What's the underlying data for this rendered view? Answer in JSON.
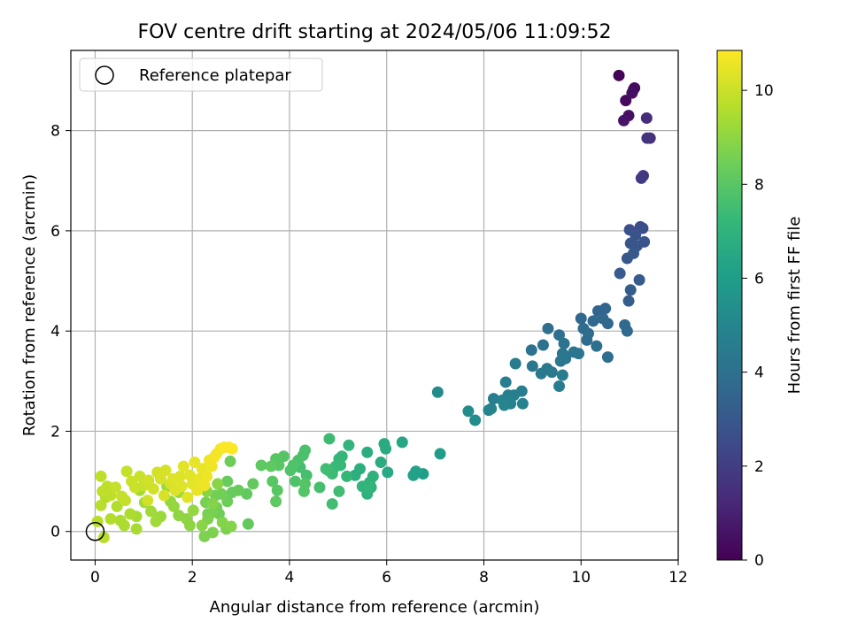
{
  "chart_data": {
    "type": "scatter",
    "title": "FOV centre drift starting at 2024/05/06 11:09:52",
    "xlabel": "Angular distance from reference (arcmin)",
    "ylabel": "Rotation from reference (arcmin)",
    "xlim": [
      -0.5,
      12
    ],
    "ylim": [
      -0.57,
      9.6
    ],
    "xticks": [
      0,
      2,
      4,
      6,
      8,
      10,
      12
    ],
    "yticks": [
      0,
      2,
      4,
      6,
      8
    ],
    "grid": true,
    "legend": {
      "location": "top-left",
      "entries": [
        "Reference platepar"
      ]
    },
    "reference_point": {
      "x": 0,
      "y": 0
    },
    "colorbar": {
      "label": "Hours from first FF file",
      "colormap": "viridis",
      "range": [
        0,
        10.85
      ],
      "ticks": [
        0,
        2,
        4,
        6,
        8,
        10
      ]
    },
    "colormap_stops": [
      "#440154",
      "#482878",
      "#3e4989",
      "#31688e",
      "#26828e",
      "#1f9e89",
      "#35b779",
      "#6ece58",
      "#b5de2b",
      "#fde725"
    ],
    "points": [
      [
        10.78,
        9.1,
        0.1
      ],
      [
        11.08,
        8.82,
        0.2
      ],
      [
        10.92,
        8.6,
        0.3
      ],
      [
        11.1,
        8.85,
        0.35
      ],
      [
        11.05,
        8.75,
        0.45
      ],
      [
        10.98,
        8.3,
        0.5
      ],
      [
        10.88,
        8.2,
        0.6
      ],
      [
        11.35,
        8.25,
        1.4
      ],
      [
        11.42,
        7.85,
        1.5
      ],
      [
        11.36,
        7.85,
        1.6
      ],
      [
        11.28,
        7.1,
        1.8
      ],
      [
        11.24,
        7.05,
        1.9
      ],
      [
        11.22,
        6.08,
        2.5
      ],
      [
        11.27,
        6.05,
        2.6
      ],
      [
        11.0,
        6.02,
        2.7
      ],
      [
        11.12,
        5.92,
        2.8
      ],
      [
        11.3,
        5.78,
        2.8
      ],
      [
        11.02,
        5.75,
        2.9
      ],
      [
        11.15,
        5.7,
        2.9
      ],
      [
        11.08,
        5.55,
        3.0
      ],
      [
        10.95,
        5.45,
        3.0
      ],
      [
        10.8,
        5.15,
        3.1
      ],
      [
        11.2,
        5.02,
        3.1
      ],
      [
        11.02,
        4.82,
        3.2
      ],
      [
        10.98,
        4.6,
        3.2
      ],
      [
        10.5,
        4.45,
        3.5
      ],
      [
        10.35,
        4.4,
        3.5
      ],
      [
        10.45,
        4.25,
        3.6
      ],
      [
        10.0,
        4.25,
        3.6
      ],
      [
        10.55,
        4.15,
        3.6
      ],
      [
        10.9,
        4.12,
        3.7
      ],
      [
        10.25,
        4.2,
        3.7
      ],
      [
        10.95,
        4.0,
        3.7
      ],
      [
        10.05,
        4.05,
        3.8
      ],
      [
        10.15,
        3.95,
        3.8
      ],
      [
        10.12,
        3.82,
        3.8
      ],
      [
        10.32,
        3.7,
        3.9
      ],
      [
        10.55,
        3.48,
        3.9
      ],
      [
        9.32,
        4.05,
        4.0
      ],
      [
        9.55,
        3.92,
        4.0
      ],
      [
        9.65,
        3.75,
        4.1
      ],
      [
        9.22,
        3.72,
        4.1
      ],
      [
        8.98,
        3.62,
        4.1
      ],
      [
        9.85,
        3.58,
        4.2
      ],
      [
        9.95,
        3.55,
        4.2
      ],
      [
        9.62,
        3.55,
        4.2
      ],
      [
        9.68,
        3.45,
        4.3
      ],
      [
        9.58,
        3.4,
        4.3
      ],
      [
        9.0,
        3.3,
        4.3
      ],
      [
        9.3,
        3.25,
        4.4
      ],
      [
        9.4,
        3.18,
        4.4
      ],
      [
        9.18,
        3.15,
        4.4
      ],
      [
        9.62,
        3.12,
        4.5
      ],
      [
        9.55,
        2.9,
        4.5
      ],
      [
        8.65,
        3.35,
        4.5
      ],
      [
        8.45,
        2.98,
        4.6
      ],
      [
        8.78,
        2.8,
        4.6
      ],
      [
        8.62,
        2.72,
        4.7
      ],
      [
        8.5,
        2.72,
        4.7
      ],
      [
        8.2,
        2.65,
        4.7
      ],
      [
        8.38,
        2.62,
        4.8
      ],
      [
        8.55,
        2.55,
        4.8
      ],
      [
        8.8,
        2.55,
        4.8
      ],
      [
        8.42,
        2.52,
        4.9
      ],
      [
        8.15,
        2.45,
        4.9
      ],
      [
        8.1,
        2.42,
        4.9
      ],
      [
        7.05,
        2.78,
        5.2
      ],
      [
        7.68,
        2.4,
        5.3
      ],
      [
        7.82,
        2.22,
        5.3
      ],
      [
        7.1,
        1.55,
        6.0
      ],
      [
        6.75,
        1.15,
        6.1
      ],
      [
        6.6,
        1.2,
        6.2
      ],
      [
        6.55,
        1.12,
        6.2
      ],
      [
        6.32,
        1.78,
        6.4
      ],
      [
        6.02,
        1.18,
        6.5
      ],
      [
        5.95,
        1.75,
        6.6
      ],
      [
        5.98,
        1.65,
        6.6
      ],
      [
        5.88,
        1.38,
        6.7
      ],
      [
        5.6,
        1.58,
        6.7
      ],
      [
        5.45,
        1.25,
        6.8
      ],
      [
        5.35,
        1.12,
        6.8
      ],
      [
        5.72,
        1.1,
        6.9
      ],
      [
        5.65,
        0.98,
        6.9
      ],
      [
        5.68,
        0.88,
        7.0
      ],
      [
        5.6,
        0.75,
        7.0
      ],
      [
        5.62,
        0.92,
        7.1
      ],
      [
        5.5,
        0.9,
        7.1
      ],
      [
        5.22,
        1.72,
        7.1
      ],
      [
        5.18,
        1.1,
        7.2
      ],
      [
        5.02,
        1.45,
        7.2
      ],
      [
        5.08,
        1.5,
        7.2
      ],
      [
        5.05,
        1.32,
        7.3
      ],
      [
        4.95,
        1.3,
        7.3
      ],
      [
        4.9,
        1.25,
        7.3
      ],
      [
        4.88,
        1.15,
        7.4
      ],
      [
        4.8,
        1.22,
        7.4
      ],
      [
        4.82,
        1.85,
        7.4
      ],
      [
        4.75,
        1.25,
        7.5
      ],
      [
        5.02,
        0.8,
        7.5
      ],
      [
        4.88,
        0.55,
        7.5
      ],
      [
        4.62,
        0.88,
        7.6
      ],
      [
        4.35,
        1.12,
        7.6
      ],
      [
        4.22,
        1.28,
        7.6
      ],
      [
        4.28,
        1.52,
        7.7
      ],
      [
        4.32,
        1.62,
        7.7
      ],
      [
        4.18,
        1.42,
        7.7
      ],
      [
        4.08,
        1.32,
        7.8
      ],
      [
        4.02,
        1.22,
        7.8
      ],
      [
        4.12,
        1.0,
        7.8
      ],
      [
        4.32,
        0.95,
        7.9
      ],
      [
        4.3,
        0.8,
        7.9
      ],
      [
        3.88,
        1.5,
        7.9
      ],
      [
        3.72,
        1.45,
        8.0
      ],
      [
        3.65,
        1.0,
        8.0
      ],
      [
        3.75,
        0.82,
        8.0
      ],
      [
        3.78,
        1.32,
        8.0
      ],
      [
        3.72,
        0.6,
        8.1
      ],
      [
        3.62,
        1.3,
        8.1
      ],
      [
        3.42,
        1.32,
        8.1
      ],
      [
        3.25,
        0.95,
        8.2
      ],
      [
        3.12,
        0.75,
        8.2
      ],
      [
        3.15,
        0.15,
        8.2
      ],
      [
        2.95,
        0.82,
        8.3
      ],
      [
        2.82,
        0.78,
        8.3
      ],
      [
        2.72,
        1.0,
        8.3
      ],
      [
        2.78,
        1.4,
        8.4
      ],
      [
        2.72,
        0.6,
        8.4
      ],
      [
        2.55,
        0.35,
        8.4
      ],
      [
        2.5,
        0.48,
        8.5
      ],
      [
        2.48,
        0.72,
        8.5
      ],
      [
        2.6,
        0.75,
        8.5
      ],
      [
        2.42,
        0.38,
        8.6
      ],
      [
        2.32,
        0.35,
        8.6
      ],
      [
        2.28,
        0.58,
        8.6
      ],
      [
        2.32,
        0.25,
        8.7
      ],
      [
        2.25,
        -0.1,
        8.7
      ],
      [
        2.42,
        -0.02,
        8.7
      ],
      [
        2.7,
        0.05,
        8.7
      ],
      [
        2.8,
        0.1,
        8.8
      ],
      [
        2.62,
        0.18,
        8.8
      ],
      [
        2.42,
        0.55,
        8.8
      ],
      [
        2.52,
        0.95,
        8.9
      ],
      [
        2.3,
        0.8,
        8.9
      ],
      [
        2.2,
        0.12,
        8.9
      ],
      [
        1.95,
        0.12,
        9.0
      ],
      [
        1.88,
        0.25,
        9.0
      ],
      [
        1.72,
        0.32,
        9.0
      ],
      [
        2.02,
        0.42,
        9.1
      ],
      [
        1.62,
        0.5,
        9.1
      ],
      [
        1.55,
        0.6,
        9.1
      ],
      [
        1.72,
        0.78,
        9.2
      ],
      [
        1.48,
        0.9,
        9.2
      ],
      [
        1.35,
        0.3,
        9.2
      ],
      [
        1.25,
        0.2,
        9.3
      ],
      [
        1.15,
        0.4,
        9.3
      ],
      [
        1.02,
        0.58,
        9.3
      ],
      [
        0.92,
        0.82,
        9.4
      ],
      [
        0.85,
        0.3,
        9.4
      ],
      [
        0.85,
        0.05,
        9.4
      ],
      [
        0.72,
        0.35,
        9.5
      ],
      [
        0.6,
        0.12,
        9.5
      ],
      [
        0.52,
        0.22,
        9.5
      ],
      [
        0.45,
        0.5,
        9.6
      ],
      [
        0.32,
        0.25,
        9.6
      ],
      [
        0.22,
        0.68,
        9.6
      ],
      [
        0.18,
        -0.12,
        9.7
      ],
      [
        0.05,
        0.2,
        9.7
      ],
      [
        0.12,
        0.52,
        9.7
      ],
      [
        0.15,
        0.8,
        9.8
      ],
      [
        0.25,
        0.9,
        9.8
      ],
      [
        0.32,
        0.72,
        9.8
      ],
      [
        0.12,
        1.1,
        9.8
      ],
      [
        0.42,
        0.88,
        9.9
      ],
      [
        0.55,
        0.7,
        9.9
      ],
      [
        0.62,
        0.62,
        9.9
      ],
      [
        0.65,
        1.2,
        9.9
      ],
      [
        0.75,
        1.0,
        10.0
      ],
      [
        0.82,
        0.88,
        10.0
      ],
      [
        0.92,
        1.1,
        10.0
      ],
      [
        1.0,
        0.92,
        10.0
      ],
      [
        1.08,
        0.62,
        10.1
      ],
      [
        1.1,
        1.02,
        10.1
      ],
      [
        1.2,
        0.85,
        10.1
      ],
      [
        1.28,
        1.18,
        10.1
      ],
      [
        1.35,
        1.05,
        10.2
      ],
      [
        1.42,
        0.72,
        10.2
      ],
      [
        1.45,
        1.22,
        10.2
      ],
      [
        1.55,
        0.95,
        10.2
      ],
      [
        1.6,
        1.05,
        10.3
      ],
      [
        1.65,
        0.82,
        10.3
      ],
      [
        1.75,
        1.1,
        10.3
      ],
      [
        1.78,
        0.9,
        10.3
      ],
      [
        1.82,
        1.3,
        10.4
      ],
      [
        1.9,
        0.68,
        10.4
      ],
      [
        1.95,
        1.12,
        10.4
      ],
      [
        2.0,
        0.95,
        10.4
      ],
      [
        2.05,
        1.38,
        10.5
      ],
      [
        2.1,
        0.82,
        10.5
      ],
      [
        2.15,
        1.05,
        10.5
      ],
      [
        2.2,
        1.25,
        10.5
      ],
      [
        2.25,
        0.92,
        10.6
      ],
      [
        2.3,
        1.1,
        10.6
      ],
      [
        2.35,
        1.42,
        10.6
      ],
      [
        2.4,
        1.3,
        10.6
      ],
      [
        2.45,
        1.48,
        10.7
      ],
      [
        2.5,
        1.55,
        10.7
      ],
      [
        2.58,
        1.65,
        10.7
      ],
      [
        2.65,
        1.68,
        10.8
      ],
      [
        2.75,
        1.68,
        10.8
      ],
      [
        2.82,
        1.65,
        10.8
      ]
    ]
  }
}
